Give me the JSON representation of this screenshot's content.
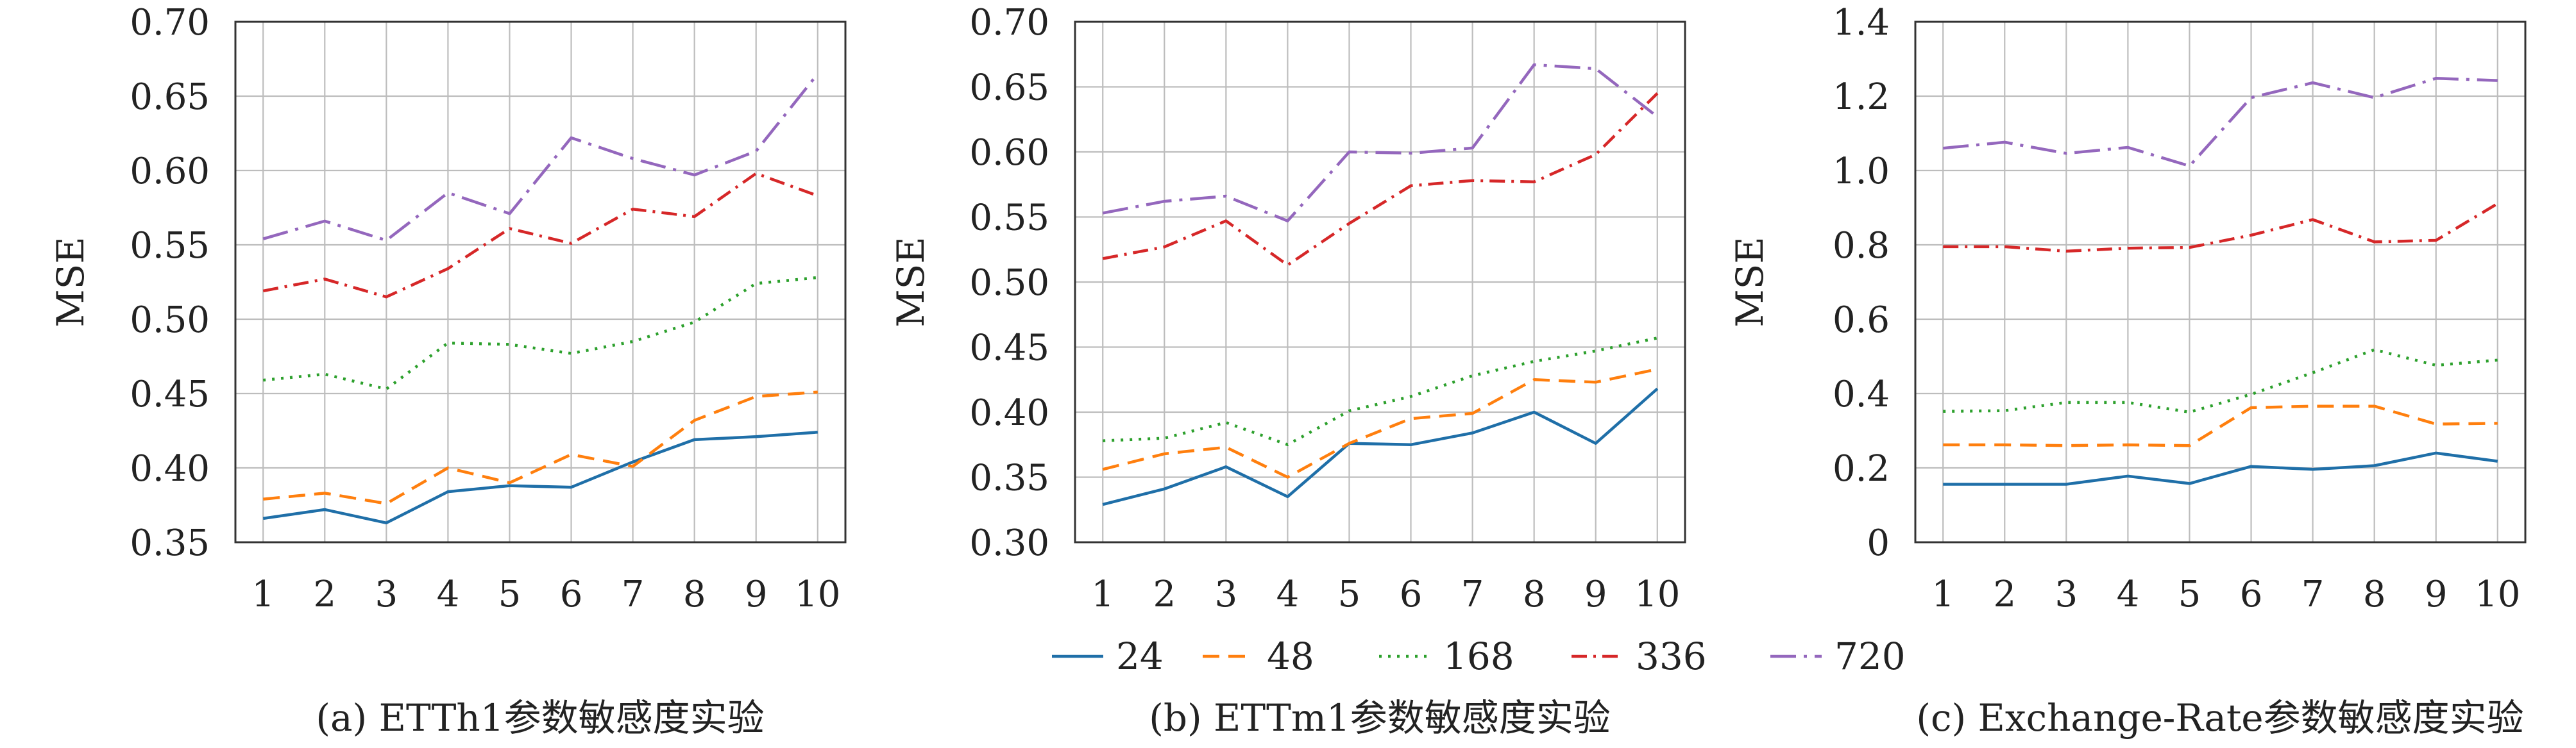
{
  "x_ticks": [
    "1",
    "2",
    "3",
    "4",
    "5",
    "6",
    "7",
    "8",
    "9",
    "10"
  ],
  "legend": [
    {
      "name": "24",
      "color": "#1f6fa8",
      "dash": "solid"
    },
    {
      "name": "48",
      "color": "#ff7f0e",
      "dash": "dashed"
    },
    {
      "name": "168",
      "color": "#2ca02c",
      "dash": "dotted"
    },
    {
      "name": "336",
      "color": "#d62728",
      "dash": "dashdot"
    },
    {
      "name": "720",
      "color": "#9467bd",
      "dash": "dashdot_long"
    }
  ],
  "chart_data": [
    {
      "type": "line",
      "caption": "(a) ETTh1参数敏感度实验",
      "ylabel": "MSE",
      "ylim": [
        0.35,
        0.7
      ],
      "yticks": [
        "0.35",
        "0.40",
        "0.45",
        "0.50",
        "0.55",
        "0.60",
        "0.65",
        "0.70"
      ],
      "x": [
        1,
        2,
        3,
        4,
        5,
        6,
        7,
        8,
        9,
        10
      ],
      "series": [
        {
          "name": "24",
          "values": [
            0.366,
            0.372,
            0.363,
            0.384,
            0.388,
            0.387,
            0.404,
            0.419,
            0.421,
            0.424
          ]
        },
        {
          "name": "48",
          "values": [
            0.379,
            0.383,
            0.376,
            0.4,
            0.39,
            0.409,
            0.401,
            0.432,
            0.448,
            0.451
          ]
        },
        {
          "name": "168",
          "values": [
            0.459,
            0.463,
            0.453,
            0.484,
            0.483,
            0.477,
            0.485,
            0.498,
            0.524,
            0.528
          ]
        },
        {
          "name": "336",
          "values": [
            0.519,
            0.527,
            0.515,
            0.534,
            0.561,
            0.551,
            0.574,
            0.569,
            0.598,
            0.583
          ]
        },
        {
          "name": "720",
          "values": [
            0.554,
            0.566,
            0.553,
            0.585,
            0.571,
            0.622,
            0.608,
            0.597,
            0.613,
            0.665
          ]
        }
      ]
    },
    {
      "type": "line",
      "caption": "(b) ETTm1参数敏感度实验",
      "ylabel": "MSE",
      "ylim": [
        0.3,
        0.7
      ],
      "yticks": [
        "0.30",
        "0.35",
        "0.40",
        "0.45",
        "0.50",
        "0.55",
        "0.60",
        "0.65",
        "0.70"
      ],
      "x": [
        1,
        2,
        3,
        4,
        5,
        6,
        7,
        8,
        9,
        10
      ],
      "series": [
        {
          "name": "24",
          "values": [
            0.329,
            0.341,
            0.358,
            0.335,
            0.376,
            0.375,
            0.384,
            0.4,
            0.376,
            0.418
          ]
        },
        {
          "name": "48",
          "values": [
            0.356,
            0.368,
            0.373,
            0.35,
            0.376,
            0.395,
            0.399,
            0.425,
            0.423,
            0.433
          ]
        },
        {
          "name": "168",
          "values": [
            0.378,
            0.38,
            0.392,
            0.375,
            0.401,
            0.412,
            0.428,
            0.439,
            0.447,
            0.457
          ]
        },
        {
          "name": "336",
          "values": [
            0.518,
            0.527,
            0.547,
            0.513,
            0.545,
            0.574,
            0.578,
            0.577,
            0.598,
            0.645
          ]
        },
        {
          "name": "720",
          "values": [
            0.553,
            0.562,
            0.566,
            0.547,
            0.6,
            0.599,
            0.603,
            0.667,
            0.664,
            0.627
          ]
        }
      ]
    },
    {
      "type": "line",
      "caption": "(c) Exchange-Rate参数敏感度实验",
      "ylabel": "MSE",
      "ylim": [
        0,
        1.4
      ],
      "yticks": [
        "0",
        "0.2",
        "0.4",
        "0.6",
        "0.8",
        "1.0",
        "1.2",
        "1.4"
      ],
      "x": [
        1,
        2,
        3,
        4,
        5,
        6,
        7,
        8,
        9,
        10
      ],
      "series": [
        {
          "name": "24",
          "values": [
            0.156,
            0.156,
            0.156,
            0.178,
            0.158,
            0.204,
            0.196,
            0.206,
            0.24,
            0.218
          ]
        },
        {
          "name": "48",
          "values": [
            0.262,
            0.262,
            0.26,
            0.262,
            0.26,
            0.362,
            0.366,
            0.366,
            0.318,
            0.32
          ]
        },
        {
          "name": "168",
          "values": [
            0.352,
            0.354,
            0.376,
            0.376,
            0.35,
            0.398,
            0.456,
            0.518,
            0.476,
            0.49
          ]
        },
        {
          "name": "336",
          "values": [
            0.795,
            0.795,
            0.783,
            0.791,
            0.793,
            0.826,
            0.868,
            0.808,
            0.812,
            0.911
          ]
        },
        {
          "name": "720",
          "values": [
            1.06,
            1.076,
            1.046,
            1.062,
            1.012,
            1.196,
            1.236,
            1.196,
            1.248,
            1.242
          ]
        }
      ]
    }
  ]
}
